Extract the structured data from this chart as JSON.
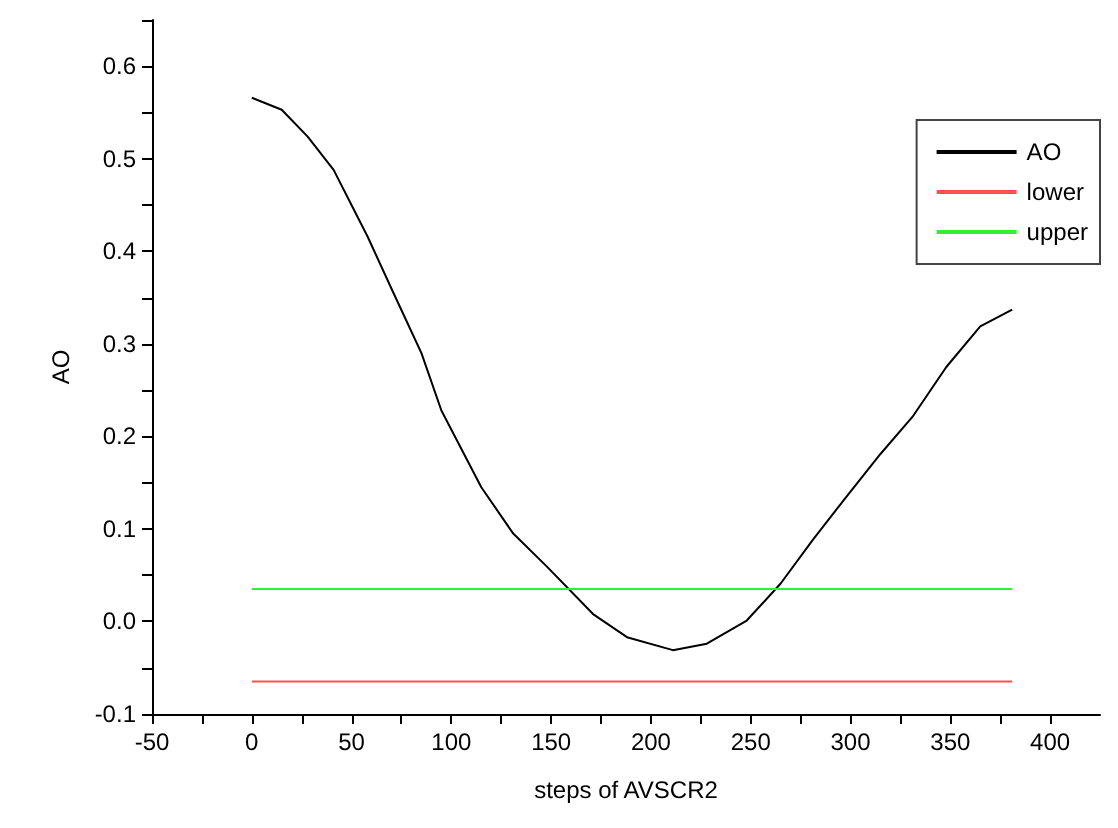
{
  "chart_data": {
    "type": "line",
    "xlabel": "steps of AVSCR2",
    "ylabel": "AO",
    "xlim": [
      -50,
      425
    ],
    "xticks": [
      -50,
      {
        "value": -25,
        "label": null
      },
      0,
      {
        "value": 25,
        "label": null
      },
      50,
      {
        "value": 75,
        "label": null
      },
      100,
      {
        "value": 125,
        "label": null
      },
      150,
      {
        "value": 175,
        "label": null
      },
      200,
      {
        "value": 225,
        "label": null
      },
      250,
      {
        "value": 275,
        "label": null
      },
      300,
      {
        "value": 325,
        "label": null
      },
      350,
      {
        "value": 375,
        "label": null
      },
      400
    ],
    "ylim": [
      -0.1,
      0.65
    ],
    "yticks": [
      -0.1,
      {
        "value": -0.05,
        "label": null
      },
      {
        "value": 0,
        "label": "0.0"
      },
      {
        "value": 0.05,
        "label": null
      },
      0.1,
      {
        "value": 0.15,
        "label": null
      },
      0.2,
      {
        "value": 0.25,
        "label": null
      },
      0.3,
      {
        "value": 0.35,
        "label": null
      },
      0.4,
      {
        "value": 0.45,
        "label": null
      },
      0.5,
      {
        "value": 0.55,
        "label": null
      },
      0.6,
      {
        "value": 0.65,
        "label": null
      }
    ],
    "grid": false,
    "legend": "top right",
    "marker": "none",
    "line_style": "solid",
    "series": [
      {
        "name": "AO",
        "color": "#000000",
        "x": [
          0,
          15,
          28,
          41,
          58,
          71,
          85,
          95,
          115,
          131,
          148,
          171,
          188,
          211,
          228,
          248,
          265,
          281,
          298,
          315,
          331,
          348,
          365,
          381
        ],
        "values": [
          0.566,
          0.553,
          0.524,
          0.488,
          0.416,
          0.355,
          0.29,
          0.228,
          0.145,
          0.095,
          0.059,
          0.008,
          -0.017,
          -0.031,
          -0.024,
          0.001,
          0.041,
          0.088,
          0.135,
          0.181,
          0.221,
          0.275,
          0.319,
          0.337
        ]
      },
      {
        "name": "lower",
        "color": "#ff5050",
        "x": [
          0,
          381
        ],
        "values": [
          -0.065,
          -0.065
        ]
      },
      {
        "name": "upper",
        "color": "#33ee33",
        "x": [
          0,
          381
        ],
        "values": [
          0.035,
          0.035
        ]
      }
    ]
  }
}
